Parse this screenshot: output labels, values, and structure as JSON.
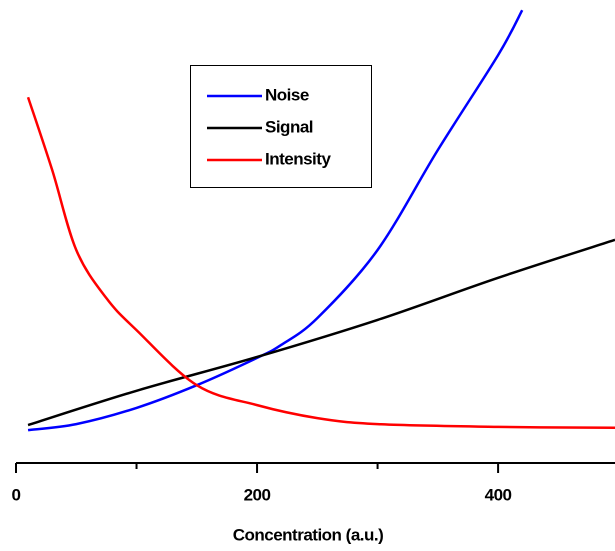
{
  "chart_data": {
    "type": "line",
    "xlabel": "Concentration (a.u.)",
    "xlim": [
      0,
      497
    ],
    "xticks": [
      0,
      200,
      400
    ],
    "xminor_ticks": [
      100,
      300
    ],
    "ylim": [
      0,
      100
    ],
    "legend": "upper center",
    "series": [
      {
        "name": "Noise",
        "color": "#0000ff",
        "x": [
          10,
          50,
          100,
          150,
          200,
          220,
          250,
          300,
          350,
          400,
          420
        ],
        "values": [
          7.1,
          8.4,
          11.9,
          16.8,
          22.7,
          25.5,
          31.3,
          46.0,
          67.6,
          88.1,
          97.8
        ]
      },
      {
        "name": "Signal",
        "color": "#000000",
        "x": [
          10,
          100,
          200,
          300,
          400,
          497
        ],
        "values": [
          8.2,
          15.6,
          22.9,
          30.9,
          40.0,
          48.2
        ]
      },
      {
        "name": "Intensity",
        "color": "#ff0000",
        "x": [
          10,
          30,
          50,
          75,
          100,
          150,
          200,
          250,
          300,
          400,
          497
        ],
        "values": [
          79.0,
          63.3,
          46.0,
          35.6,
          28.7,
          16.8,
          12.5,
          9.7,
          8.4,
          7.8,
          7.6
        ]
      }
    ]
  }
}
